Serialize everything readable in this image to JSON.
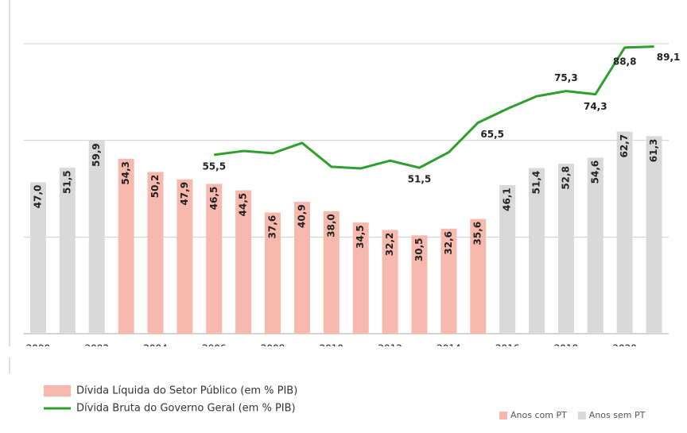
{
  "chart_data": {
    "type": "bar",
    "categories": [
      "2000",
      null,
      "2002",
      null,
      "2004",
      null,
      "2006",
      null,
      "2008",
      null,
      "2010",
      null,
      "2012",
      null,
      "2014",
      null,
      "2016",
      null,
      "2018",
      null,
      "2020",
      null
    ],
    "series": [
      {
        "name": "Dívida Líquida do Setor Público (em % PIB)",
        "type": "bar",
        "color": "#f7b9ad",
        "colors": [
          "#d9d9d9",
          "#d9d9d9",
          "#d9d9d9",
          "#f7b9ad",
          "#f7b9ad",
          "#f7b9ad",
          "#f7b9ad",
          "#f7b9ad",
          "#f7b9ad",
          "#f7b9ad",
          "#f7b9ad",
          "#f7b9ad",
          "#f7b9ad",
          "#f7b9ad",
          "#f7b9ad",
          "#f7b9ad",
          "#d9d9d9",
          "#d9d9d9",
          "#d9d9d9",
          "#d9d9d9",
          "#d9d9d9",
          "#d9d9d9"
        ],
        "values": [
          47.0,
          51.5,
          59.9,
          54.3,
          50.2,
          47.9,
          46.5,
          44.5,
          37.6,
          40.9,
          38.0,
          34.5,
          32.2,
          30.5,
          32.6,
          35.6,
          46.1,
          51.4,
          52.8,
          54.6,
          62.7,
          61.3
        ],
        "value_labels": [
          "47,0",
          "51,5",
          "59,9",
          "54,3",
          "50,2",
          "47,9",
          "46,5",
          "44,5",
          "37,6",
          "40,9",
          "38,0",
          "34,5",
          "32,2",
          "30,5",
          "32,6",
          "35,6",
          "46,1",
          "51,4",
          "52,8",
          "54,6",
          "62,7",
          "61,3"
        ]
      },
      {
        "name": "Dívida Bruta do Governo Geral (em % PIB)",
        "type": "line",
        "color": "#2e9e2e",
        "values": [
          null,
          null,
          null,
          null,
          null,
          null,
          55.5,
          56.7,
          56.0,
          59.2,
          51.8,
          51.3,
          53.7,
          51.5,
          56.3,
          65.5,
          69.8,
          73.7,
          75.3,
          74.3,
          88.8,
          89.1
        ],
        "value_labels": [
          null,
          null,
          null,
          null,
          null,
          null,
          "55,5",
          null,
          null,
          null,
          null,
          null,
          null,
          "51,5",
          null,
          "65,5",
          null,
          null,
          "75,3",
          "74,3",
          "88,8",
          "89,1"
        ]
      }
    ],
    "color_legend": [
      {
        "label": "Anos com PT",
        "color": "#f7b9ad"
      },
      {
        "label": "Anos sem PT",
        "color": "#d9d9d9"
      }
    ],
    "ylim": [
      0,
      90
    ],
    "yticks": [
      0,
      30,
      60,
      90
    ],
    "grid": true
  }
}
